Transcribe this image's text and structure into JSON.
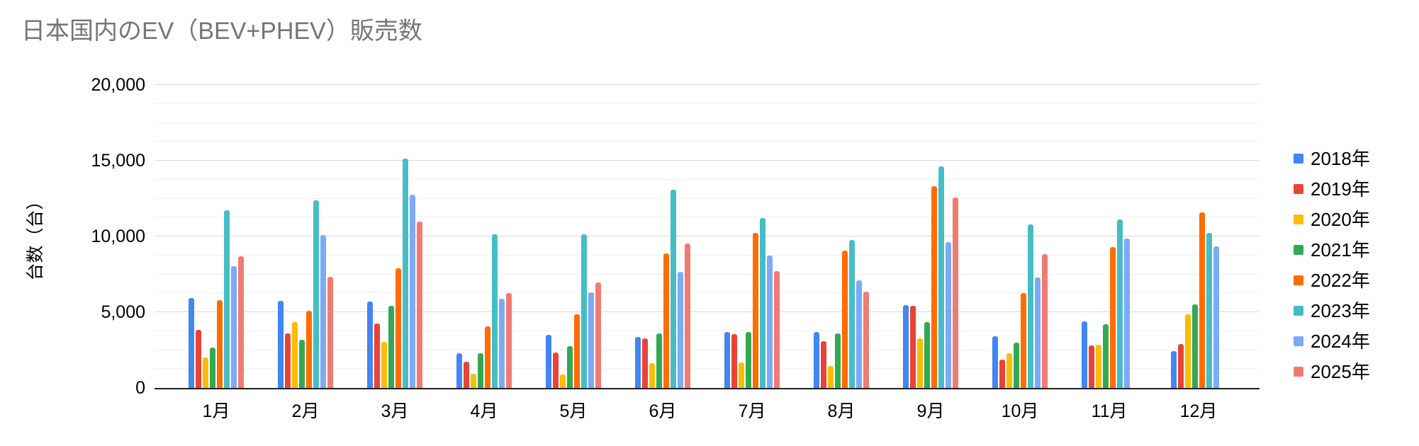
{
  "page": {
    "background": "#ffffff"
  },
  "chart_data": {
    "type": "bar",
    "title": "日本国内のEV（BEV+PHEV）販売数",
    "title_color": "#757575",
    "xlabel": "",
    "ylabel": "台数（台）",
    "ylim": [
      0,
      20000
    ],
    "y_major_step": 5000,
    "y_minor_step": 1250,
    "y_tick_labels": [
      "0",
      "5,000",
      "10,000",
      "15,000",
      "20,000"
    ],
    "grid": true,
    "legend_position": "right",
    "categories": [
      "1月",
      "2月",
      "3月",
      "4月",
      "5月",
      "6月",
      "7月",
      "8月",
      "9月",
      "10月",
      "11月",
      "12月"
    ],
    "series": [
      {
        "name": "2018年",
        "color": "#4285F4",
        "values": [
          5950,
          5750,
          5700,
          2300,
          3500,
          3350,
          3700,
          3700,
          5450,
          3400,
          4400,
          2450
        ]
      },
      {
        "name": "2019年",
        "color": "#EA4335",
        "values": [
          3850,
          3600,
          4250,
          1750,
          2350,
          3250,
          3550,
          3100,
          5400,
          1850,
          2800,
          2900
        ]
      },
      {
        "name": "2020年",
        "color": "#FBBC04",
        "values": [
          2000,
          4350,
          3050,
          950,
          900,
          1650,
          1700,
          1450,
          3250,
          2300,
          2850,
          4850
        ]
      },
      {
        "name": "2021年",
        "color": "#34A853",
        "values": [
          2650,
          3200,
          5400,
          2300,
          2750,
          3600,
          3700,
          3600,
          4350,
          3000,
          4200,
          5500
        ]
      },
      {
        "name": "2022年",
        "color": "#FF6D01",
        "values": [
          5800,
          5100,
          7900,
          4050,
          4850,
          8900,
          10250,
          9050,
          13300,
          6250,
          9300,
          11600
        ]
      },
      {
        "name": "2023年",
        "color": "#46BDC6",
        "values": [
          11750,
          12400,
          15150,
          10150,
          10150,
          13100,
          11200,
          9750,
          14650,
          10800,
          11100,
          10250
        ]
      },
      {
        "name": "2024年",
        "color": "#7BAAF7",
        "values": [
          8050,
          10100,
          12750,
          5900,
          6300,
          7650,
          8750,
          7100,
          9650,
          7300,
          9850,
          9350
        ]
      },
      {
        "name": "2025年",
        "color": "#F07B72",
        "values": [
          8700,
          7350,
          11000,
          6250,
          6950,
          9550,
          7700,
          6350,
          12550,
          8850,
          null,
          null
        ]
      }
    ]
  }
}
